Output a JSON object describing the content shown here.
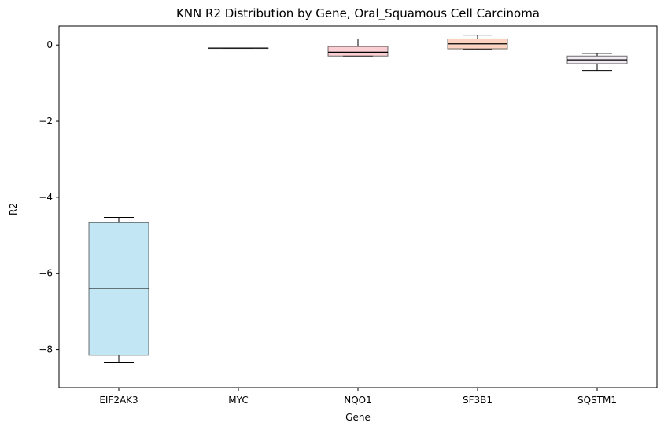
{
  "chart_data": {
    "type": "box",
    "title": "KNN R2 Distribution by Gene, Oral_Squamous Cell Carcinoma",
    "xlabel": "Gene",
    "ylabel": "R2",
    "ylim": [
      -9.0,
      0.5
    ],
    "yticks": [
      {
        "value": 0,
        "label": "0"
      },
      {
        "value": -2,
        "label": "−2"
      },
      {
        "value": -4,
        "label": "−4"
      },
      {
        "value": -6,
        "label": "−6"
      },
      {
        "value": -8,
        "label": "−8"
      }
    ],
    "grid": false,
    "boxes": [
      {
        "label": "EIF2AK3",
        "color": "#87CEEB",
        "whisker_low": -8.35,
        "q1": -8.15,
        "median": -6.4,
        "q3": -4.67,
        "whisker_high": -4.53
      },
      {
        "label": "MYC",
        "color": "#C0C0C0",
        "whisker_low": -0.08,
        "q1": -0.08,
        "median": -0.08,
        "q3": -0.08,
        "whisker_high": -0.08
      },
      {
        "label": "NQO1",
        "color": "#F4A0A8",
        "whisker_low": -0.29,
        "q1": -0.29,
        "median": -0.19,
        "q3": -0.04,
        "whisker_high": 0.16
      },
      {
        "label": "SF3B1",
        "color": "#F7A882",
        "whisker_low": -0.12,
        "q1": -0.1,
        "median": 0.03,
        "q3": 0.16,
        "whisker_high": 0.26
      },
      {
        "label": "SQSTM1",
        "color": "#E6D5E6",
        "whisker_low": -0.67,
        "q1": -0.49,
        "median": -0.39,
        "q3": -0.29,
        "whisker_high": -0.22
      }
    ]
  }
}
